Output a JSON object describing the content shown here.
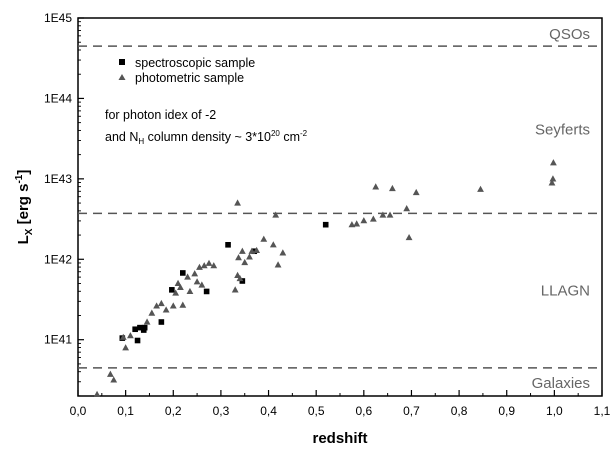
{
  "chart_data": {
    "type": "scatter",
    "xlabel": "redshift",
    "ylabel_main": "L",
    "ylabel_sub": "X",
    "ylabel_rest": " [erg s",
    "ylabel_sup": "-1",
    "ylabel_end": "]",
    "xlim": [
      0.0,
      1.1
    ],
    "ylim_log10": [
      40.3,
      45.0
    ],
    "y_scale": "log",
    "x_ticks": [
      "0,0",
      "0,1",
      "0,2",
      "0,3",
      "0,4",
      "0,5",
      "0,6",
      "0,7",
      "0,8",
      "0,9",
      "1,0",
      "1,1"
    ],
    "y_ticks": [
      "1E41",
      "1E42",
      "1E43",
      "1E44",
      "1E45"
    ],
    "thresholds": [
      {
        "log10_value": 44.65
      },
      {
        "log10_value": 42.57
      },
      {
        "log10_value": 40.65
      }
    ],
    "regions": [
      {
        "label": "QSOs"
      },
      {
        "label": "Seyferts"
      },
      {
        "label": "LLAGN"
      },
      {
        "label": "Galaxies"
      }
    ],
    "legend": {
      "placement": "top-left",
      "items": [
        {
          "label": "spectroscopic sample",
          "marker": "square"
        },
        {
          "label": "photometric sample",
          "marker": "triangle"
        }
      ]
    },
    "annotation": {
      "line1": "for photon idex of -2",
      "line2_a": "and N",
      "line2_sub": "H",
      "line2_b": " column density ~ 3*10",
      "line2_sup": "20",
      "line2_c": " cm",
      "line2_sup2": "-2"
    },
    "series": [
      {
        "name": "spectroscopic sample",
        "marker": "square",
        "color": "#000000",
        "points": [
          [
            0.093,
            41.02
          ],
          [
            0.12,
            41.13
          ],
          [
            0.125,
            40.99
          ],
          [
            0.13,
            41.15
          ],
          [
            0.138,
            41.12
          ],
          [
            0.14,
            41.15
          ],
          [
            0.175,
            41.22
          ],
          [
            0.197,
            41.62
          ],
          [
            0.22,
            41.83
          ],
          [
            0.27,
            41.6
          ],
          [
            0.315,
            42.18
          ],
          [
            0.345,
            41.73
          ],
          [
            0.37,
            42.1
          ],
          [
            0.52,
            42.43
          ]
        ]
      },
      {
        "name": "photometric sample",
        "marker": "triangle",
        "color": "#555555",
        "points": [
          [
            0.04,
            40.32
          ],
          [
            0.068,
            40.57
          ],
          [
            0.075,
            40.5
          ],
          [
            0.095,
            41.03
          ],
          [
            0.1,
            40.9
          ],
          [
            0.11,
            41.05
          ],
          [
            0.145,
            41.22
          ],
          [
            0.155,
            41.33
          ],
          [
            0.165,
            41.42
          ],
          [
            0.175,
            41.45
          ],
          [
            0.185,
            41.37
          ],
          [
            0.2,
            41.42
          ],
          [
            0.205,
            41.58
          ],
          [
            0.21,
            41.7
          ],
          [
            0.215,
            41.65
          ],
          [
            0.22,
            41.43
          ],
          [
            0.23,
            41.78
          ],
          [
            0.235,
            41.6
          ],
          [
            0.245,
            41.82
          ],
          [
            0.25,
            41.72
          ],
          [
            0.255,
            41.9
          ],
          [
            0.26,
            41.68
          ],
          [
            0.265,
            41.92
          ],
          [
            0.275,
            41.95
          ],
          [
            0.285,
            41.92
          ],
          [
            0.33,
            41.62
          ],
          [
            0.335,
            41.8
          ],
          [
            0.337,
            42.02
          ],
          [
            0.34,
            41.76
          ],
          [
            0.345,
            42.1
          ],
          [
            0.35,
            41.96
          ],
          [
            0.36,
            42.03
          ],
          [
            0.365,
            42.1
          ],
          [
            0.375,
            42.11
          ],
          [
            0.39,
            42.25
          ],
          [
            0.41,
            42.18
          ],
          [
            0.42,
            41.93
          ],
          [
            0.43,
            42.08
          ],
          [
            0.335,
            42.7
          ],
          [
            0.415,
            42.55
          ],
          [
            0.575,
            42.43
          ],
          [
            0.585,
            42.44
          ],
          [
            0.6,
            42.48
          ],
          [
            0.62,
            42.5
          ],
          [
            0.625,
            42.9
          ],
          [
            0.64,
            42.55
          ],
          [
            0.655,
            42.55
          ],
          [
            0.66,
            42.88
          ],
          [
            0.69,
            42.63
          ],
          [
            0.695,
            42.27
          ],
          [
            0.71,
            42.83
          ],
          [
            0.845,
            42.87
          ],
          [
            0.995,
            42.95
          ],
          [
            0.997,
            43.0
          ],
          [
            0.998,
            43.2
          ]
        ]
      }
    ]
  }
}
